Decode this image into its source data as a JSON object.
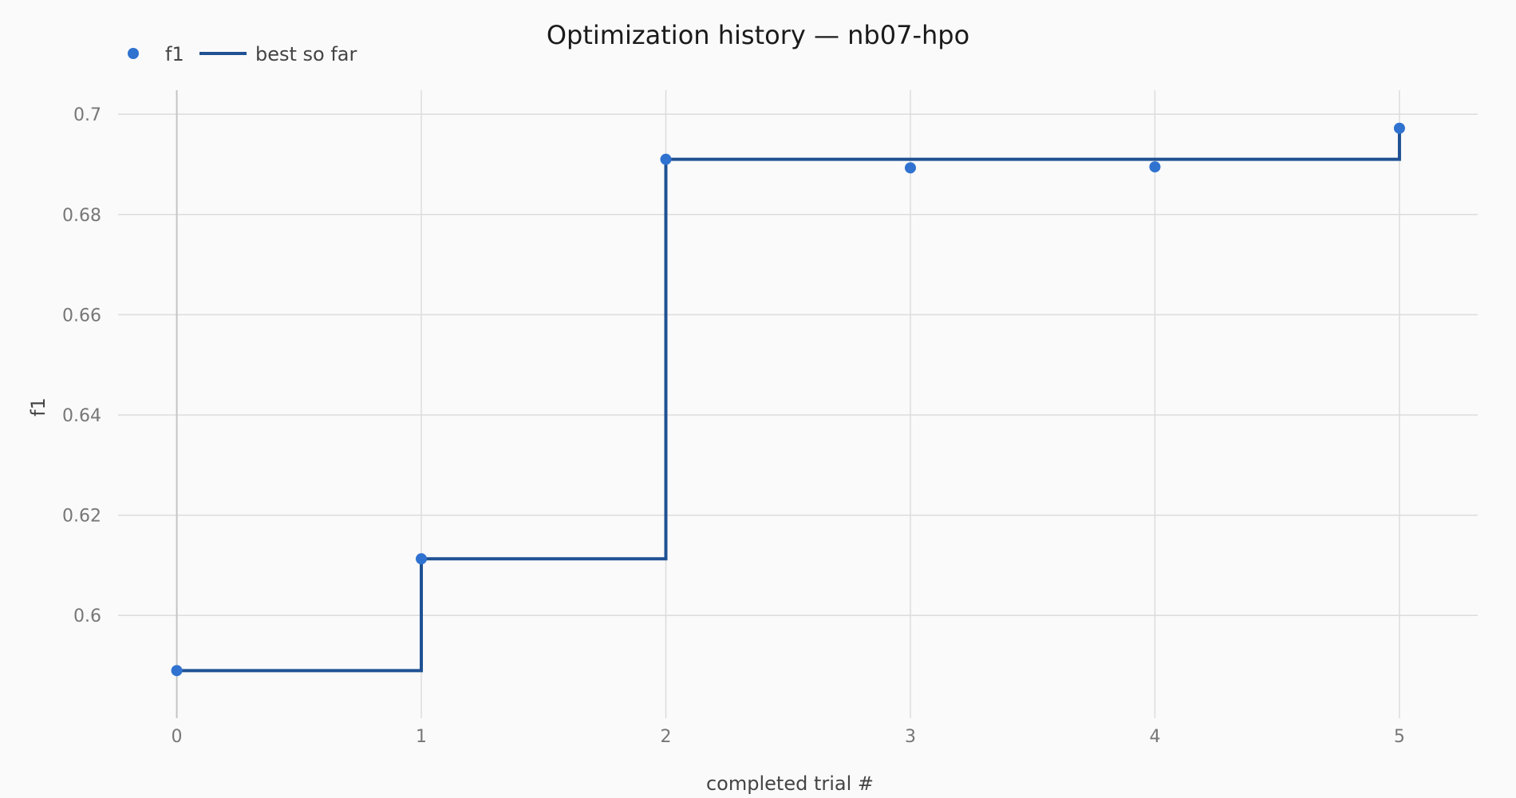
{
  "chart_data": {
    "type": "line",
    "title": "Optimization history — nb07-hpo",
    "xlabel": "completed trial #",
    "ylabel": "f1",
    "xlim": [
      -0.24,
      5.32
    ],
    "ylim": [
      0.5795,
      0.7048
    ],
    "x_ticks": [
      0,
      1,
      2,
      3,
      4,
      5
    ],
    "y_ticks": [
      0.6,
      0.62,
      0.64,
      0.66,
      0.68,
      0.7
    ],
    "y_tick_labels": [
      "0.6",
      "0.62",
      "0.64",
      "0.66",
      "0.68",
      "0.7"
    ],
    "grid": true,
    "legend_position": "top-left",
    "series": [
      {
        "name": "f1",
        "kind": "markers",
        "color": "#2f72d0",
        "x": [
          0,
          1,
          2,
          3,
          4,
          5
        ],
        "y": [
          0.589,
          0.6113,
          0.691,
          0.6893,
          0.6895,
          0.6972
        ]
      },
      {
        "name": "best so far",
        "kind": "step",
        "color": "#1f5193",
        "x": [
          0,
          1,
          2,
          3,
          4,
          5
        ],
        "y": [
          0.589,
          0.6113,
          0.691,
          0.691,
          0.691,
          0.6972
        ]
      }
    ]
  }
}
